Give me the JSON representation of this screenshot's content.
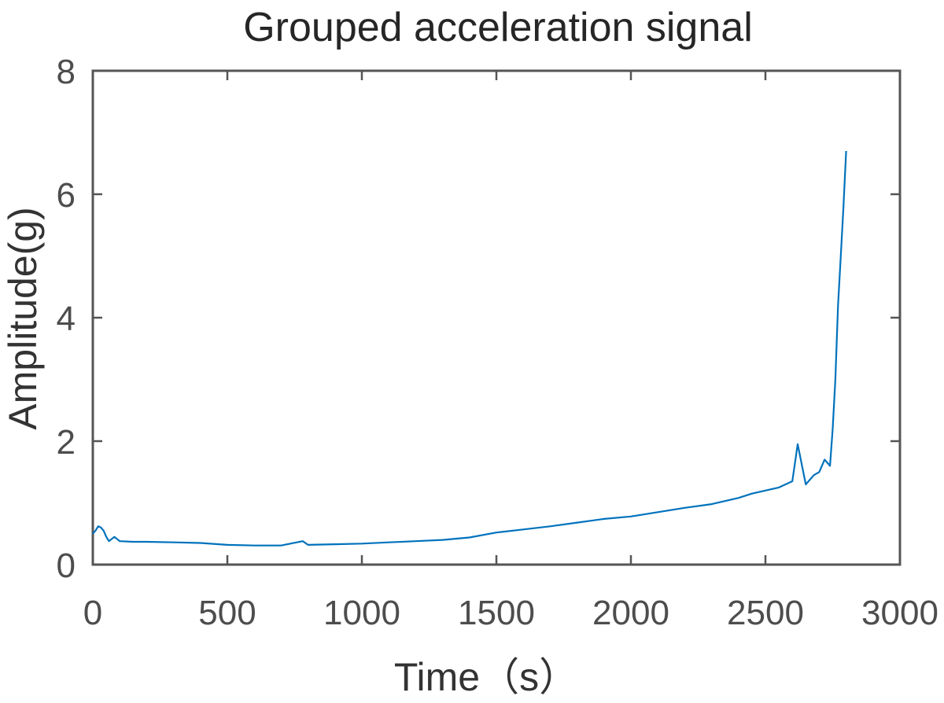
{
  "chart_data": {
    "type": "line",
    "title": "Grouped acceleration signal",
    "xlabel": "Time（s）",
    "ylabel": "Amplitude(g)",
    "xlim": [
      0,
      3000
    ],
    "ylim": [
      0,
      8
    ],
    "x_ticks": [
      0,
      500,
      1000,
      1500,
      2000,
      2500,
      3000
    ],
    "x_tick_labels": [
      "0",
      "500",
      "1000",
      "1500",
      "2000",
      "2500",
      "3000"
    ],
    "y_ticks": [
      0,
      2,
      4,
      6,
      8
    ],
    "y_tick_labels": [
      "0",
      "2",
      "4",
      "6",
      "8"
    ],
    "grid": false,
    "legend": "none",
    "series": [
      {
        "color": "#0072bd",
        "x": [
          0,
          10,
          20,
          30,
          40,
          50,
          60,
          80,
          100,
          150,
          200,
          300,
          400,
          500,
          600,
          700,
          780,
          800,
          900,
          1000,
          1100,
          1200,
          1300,
          1400,
          1500,
          1600,
          1700,
          1800,
          1900,
          2000,
          2100,
          2200,
          2300,
          2400,
          2450,
          2500,
          2550,
          2600,
          2620,
          2650,
          2680,
          2700,
          2720,
          2740,
          2750,
          2760,
          2770,
          2780,
          2790,
          2800
        ],
        "y": [
          0.5,
          0.55,
          0.62,
          0.6,
          0.55,
          0.45,
          0.38,
          0.45,
          0.38,
          0.37,
          0.37,
          0.36,
          0.35,
          0.32,
          0.31,
          0.31,
          0.38,
          0.32,
          0.33,
          0.34,
          0.36,
          0.38,
          0.4,
          0.44,
          0.52,
          0.57,
          0.62,
          0.68,
          0.74,
          0.78,
          0.85,
          0.92,
          0.98,
          1.08,
          1.15,
          1.2,
          1.25,
          1.35,
          1.95,
          1.3,
          1.45,
          1.5,
          1.7,
          1.6,
          2.2,
          3.0,
          4.2,
          5.0,
          5.8,
          6.7
        ]
      }
    ]
  }
}
